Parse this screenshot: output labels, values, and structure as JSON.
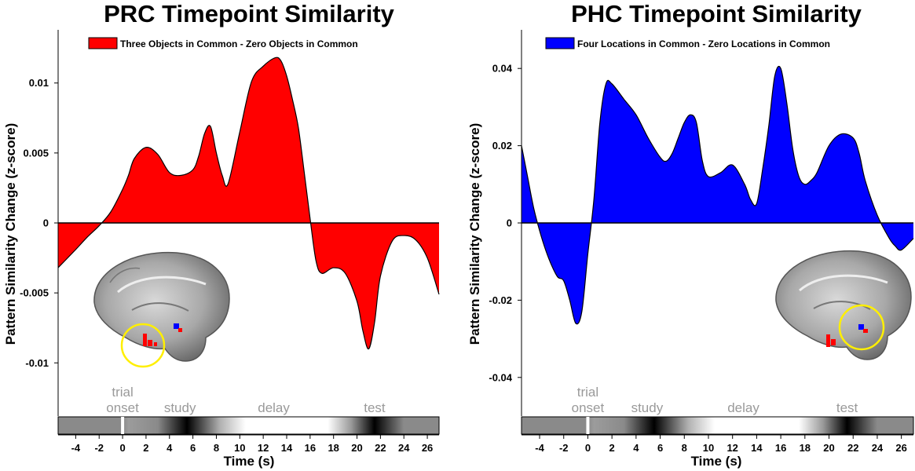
{
  "chart_data": [
    {
      "type": "area",
      "title": "PRC Timepoint Similarity",
      "xlabel": "Time (s)",
      "ylabel": "Pattern Similarity Change (z-score)",
      "xlim": [
        -5.5,
        27
      ],
      "ylim": [
        -0.0138,
        0.0138
      ],
      "x_ticks": [
        -4,
        -2,
        0,
        2,
        4,
        6,
        8,
        10,
        12,
        14,
        16,
        18,
        20,
        22,
        24,
        26
      ],
      "y_ticks": [
        -0.01,
        -0.005,
        0,
        0.005,
        0.01
      ],
      "y_tick_labels": [
        "-0.01",
        "-0.005",
        "0",
        "0.005",
        "0.01"
      ],
      "legend_position": "top",
      "series": [
        {
          "name": "Three Objects in Common - Zero Objects in Common",
          "color": "#ff0000",
          "x": [
            -5.5,
            -4,
            -3,
            -2,
            -1,
            0,
            0.5,
            1,
            2,
            3,
            4,
            5,
            6,
            6.5,
            7,
            7.5,
            8,
            8.5,
            9,
            10,
            11,
            12,
            13,
            13.5,
            14,
            14.5,
            15,
            15.5,
            16,
            16.5,
            17,
            18,
            19,
            20,
            20.5,
            21,
            21.5,
            22,
            23,
            24,
            25,
            26,
            27
          ],
          "y": [
            -0.0032,
            -0.0019,
            -0.001,
            -0.0002,
            0.0008,
            0.0024,
            0.0034,
            0.0046,
            0.0054,
            0.0049,
            0.0036,
            0.0034,
            0.0038,
            0.0048,
            0.0064,
            0.0069,
            0.005,
            0.0034,
            0.0028,
            0.0065,
            0.0101,
            0.0112,
            0.0118,
            0.0116,
            0.0105,
            0.0088,
            0.0068,
            0.0036,
            0.0003,
            -0.0027,
            -0.0036,
            -0.0032,
            -0.0036,
            -0.0056,
            -0.0077,
            -0.009,
            -0.0071,
            -0.0038,
            -0.0013,
            -0.0009,
            -0.0012,
            -0.0025,
            -0.0051
          ]
        }
      ]
    },
    {
      "type": "area",
      "title": "PHC Timepoint Similarity",
      "xlabel": "Time (s)",
      "ylabel": "Pattern Similarity Change (z-score)",
      "xlim": [
        -5.5,
        27
      ],
      "ylim": [
        -0.05,
        0.05
      ],
      "x_ticks": [
        -4,
        -2,
        0,
        2,
        4,
        6,
        8,
        10,
        12,
        14,
        16,
        18,
        20,
        22,
        24,
        26
      ],
      "y_ticks": [
        -0.04,
        -0.02,
        0,
        0.02,
        0.04
      ],
      "y_tick_labels": [
        "-0.04",
        "-0.02",
        "0",
        "0.02",
        "0.04"
      ],
      "legend_position": "top",
      "series": [
        {
          "name": "Four Locations in Common - Zero Locations in Common",
          "color": "#0000ff",
          "x": [
            -5.5,
            -5,
            -4.5,
            -4,
            -3.5,
            -3,
            -2.5,
            -2,
            -1.5,
            -1,
            -0.5,
            0,
            0.5,
            1,
            1.5,
            2,
            3,
            4,
            5,
            6,
            6.5,
            7,
            7.5,
            8,
            8.5,
            9,
            9.5,
            10,
            11,
            12,
            13,
            13.5,
            14,
            14.5,
            15,
            15.5,
            16,
            16.5,
            17,
            17.5,
            18,
            18.5,
            19,
            20,
            21,
            22,
            22.5,
            23,
            24,
            25,
            25.5,
            26,
            27
          ],
          "y": [
            0.02,
            0.012,
            0.004,
            -0.002,
            -0.007,
            -0.011,
            -0.014,
            -0.015,
            -0.02,
            -0.026,
            -0.023,
            -0.008,
            0.006,
            0.026,
            0.036,
            0.036,
            0.032,
            0.028,
            0.022,
            0.017,
            0.016,
            0.018,
            0.022,
            0.026,
            0.028,
            0.026,
            0.016,
            0.012,
            0.013,
            0.015,
            0.01,
            0.006,
            0.005,
            0.014,
            0.025,
            0.038,
            0.04,
            0.031,
            0.019,
            0.012,
            0.01,
            0.011,
            0.013,
            0.02,
            0.023,
            0.022,
            0.018,
            0.011,
            0.002,
            -0.004,
            -0.006,
            -0.007,
            -0.004
          ]
        }
      ]
    }
  ],
  "timeline": {
    "labels": [
      "trial\nonset",
      "study",
      "delay",
      "test"
    ],
    "trial_onset_s": 0,
    "study_center_s": 5.5,
    "test_center_s": 21.5
  }
}
